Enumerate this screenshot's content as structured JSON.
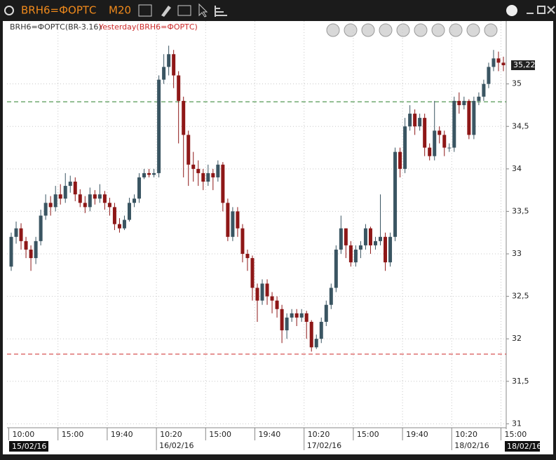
{
  "window": {
    "symbol": "BRH6=ФОРТС",
    "timeframe": "M20"
  },
  "chart_data": {
    "type": "candlestick",
    "series": [
      {
        "name": "BRH6=ФОРТС(BR-3.16)",
        "up_color": "#3a5562",
        "down_color": "#8e1717",
        "open": [
          32.85,
          33.2,
          33.3,
          33.15,
          33.05,
          32.95,
          33.15,
          33.45,
          33.6,
          33.55,
          33.7,
          33.65,
          33.8,
          33.85,
          33.7,
          33.6,
          33.55,
          33.7,
          33.65,
          33.7,
          33.6,
          33.55,
          33.35,
          33.3,
          33.4,
          33.6,
          33.65,
          33.9,
          33.95,
          33.93,
          33.95,
          35.05,
          35.2,
          35.35,
          35.1,
          34.8,
          34.4,
          34.05,
          34.0,
          33.95,
          33.85,
          33.95,
          33.9,
          34.05,
          33.6,
          33.2,
          33.5,
          33.3,
          33.0,
          32.95,
          32.6,
          32.45,
          32.65,
          32.5,
          32.45,
          32.35,
          32.1,
          32.25,
          32.3,
          32.25,
          32.3,
          32.2,
          31.9,
          32.0,
          32.2,
          32.4,
          32.6,
          33.05,
          33.3,
          33.1,
          32.9,
          33.05,
          33.1,
          33.3,
          33.1,
          33.15,
          33.2,
          32.9,
          33.2,
          34.2,
          34.0,
          34.5,
          34.65,
          34.5,
          34.6,
          34.25,
          34.15,
          34.45,
          34.4,
          34.25,
          34.25,
          34.8,
          34.75,
          34.8,
          34.4,
          34.8,
          34.85,
          35.0,
          35.2,
          35.3,
          35.25
        ],
        "high": [
          33.25,
          33.38,
          33.36,
          33.2,
          33.1,
          33.2,
          33.52,
          33.7,
          33.68,
          33.8,
          33.82,
          33.95,
          33.92,
          33.9,
          33.76,
          33.68,
          33.78,
          33.75,
          33.82,
          33.74,
          33.66,
          33.6,
          33.42,
          33.45,
          33.66,
          33.7,
          33.95,
          34.0,
          34.0,
          34.0,
          35.1,
          35.35,
          35.45,
          35.4,
          35.15,
          34.85,
          34.45,
          34.2,
          34.1,
          34.0,
          34.05,
          34.0,
          34.1,
          34.08,
          33.65,
          33.55,
          33.55,
          33.35,
          33.05,
          32.98,
          32.65,
          32.7,
          32.7,
          32.55,
          32.5,
          32.4,
          32.3,
          32.35,
          32.35,
          32.35,
          32.33,
          32.22,
          32.05,
          32.25,
          32.45,
          32.65,
          33.1,
          33.45,
          33.3,
          33.15,
          33.1,
          33.15,
          33.35,
          33.32,
          33.2,
          33.7,
          33.25,
          33.25,
          34.25,
          34.25,
          34.6,
          34.75,
          34.7,
          34.65,
          34.65,
          34.3,
          34.8,
          34.5,
          34.45,
          34.3,
          34.85,
          34.9,
          34.85,
          34.82,
          34.85,
          34.9,
          35.05,
          35.25,
          35.4,
          35.38,
          35.32
        ],
        "low": [
          32.8,
          33.12,
          33.05,
          32.95,
          32.8,
          32.88,
          33.1,
          33.4,
          33.45,
          33.5,
          33.58,
          33.6,
          33.72,
          33.62,
          33.55,
          33.48,
          33.5,
          33.58,
          33.6,
          33.52,
          33.45,
          33.28,
          33.25,
          33.28,
          33.38,
          33.55,
          33.6,
          33.88,
          33.9,
          33.9,
          33.9,
          35.0,
          35.1,
          34.95,
          34.3,
          33.9,
          33.8,
          33.85,
          33.8,
          33.75,
          33.8,
          33.75,
          33.85,
          33.5,
          33.15,
          33.15,
          33.2,
          32.9,
          32.8,
          32.45,
          32.2,
          32.4,
          32.4,
          32.3,
          32.25,
          31.95,
          32.0,
          32.2,
          32.15,
          32.2,
          32.0,
          31.85,
          31.88,
          31.95,
          32.15,
          32.35,
          32.55,
          33.0,
          32.95,
          32.85,
          32.85,
          32.95,
          33.05,
          33.0,
          33.05,
          33.1,
          32.8,
          32.85,
          33.15,
          33.9,
          33.95,
          34.45,
          34.4,
          34.45,
          34.15,
          34.1,
          34.1,
          34.3,
          34.15,
          34.2,
          34.2,
          34.65,
          34.7,
          34.35,
          34.35,
          34.75,
          34.8,
          34.95,
          35.15,
          35.15,
          35.15
        ],
        "close": [
          33.2,
          33.3,
          33.15,
          33.05,
          32.95,
          33.15,
          33.45,
          33.6,
          33.55,
          33.7,
          33.65,
          33.8,
          33.85,
          33.7,
          33.6,
          33.55,
          33.7,
          33.65,
          33.7,
          33.6,
          33.55,
          33.35,
          33.3,
          33.4,
          33.6,
          33.65,
          33.9,
          33.95,
          33.93,
          33.95,
          35.05,
          35.2,
          35.35,
          35.1,
          34.8,
          34.4,
          34.05,
          34.0,
          33.95,
          33.85,
          33.95,
          33.9,
          34.05,
          33.6,
          33.2,
          33.5,
          33.3,
          33.0,
          32.95,
          32.6,
          32.45,
          32.65,
          32.5,
          32.45,
          32.35,
          32.1,
          32.25,
          32.3,
          32.25,
          32.3,
          32.2,
          31.9,
          32.0,
          32.2,
          32.4,
          32.6,
          33.05,
          33.3,
          33.1,
          32.9,
          33.05,
          33.1,
          33.3,
          33.1,
          33.15,
          33.2,
          32.9,
          33.2,
          34.2,
          34.0,
          34.5,
          34.65,
          34.5,
          34.6,
          34.25,
          34.15,
          34.45,
          34.4,
          34.25,
          34.25,
          34.8,
          34.75,
          34.8,
          34.4,
          34.8,
          34.85,
          35.0,
          35.2,
          35.3,
          35.25,
          35.22
        ]
      }
    ],
    "categories": [
      "10:00",
      null,
      null,
      null,
      null,
      null,
      null,
      null,
      null,
      null,
      "15:00",
      null,
      null,
      null,
      null,
      null,
      null,
      null,
      null,
      null,
      "19:40",
      null,
      null,
      null,
      null,
      null,
      null,
      null,
      null,
      null,
      "10:20",
      null,
      null,
      null,
      null,
      null,
      null,
      null,
      null,
      null,
      "15:00",
      null,
      null,
      null,
      null,
      null,
      null,
      null,
      null,
      null,
      "19:40",
      null,
      null,
      null,
      null,
      null,
      null,
      null,
      null,
      null,
      "10:20",
      null,
      null,
      null,
      null,
      null,
      null,
      null,
      null,
      null,
      "15:00",
      null,
      null,
      null,
      null,
      null,
      null,
      null,
      null,
      null,
      "19:40",
      null,
      null,
      null,
      null,
      null,
      null,
      null,
      null,
      null,
      "10:20",
      null,
      null,
      null,
      null,
      null,
      null,
      null,
      null,
      null,
      "15:00"
    ],
    "dates": [
      "15/02/16",
      null,
      null,
      null,
      null,
      null,
      null,
      null,
      null,
      null,
      null,
      null,
      null,
      null,
      null,
      null,
      null,
      null,
      null,
      null,
      null,
      null,
      null,
      null,
      null,
      null,
      null,
      null,
      null,
      null,
      "16/02/16",
      null,
      null,
      null,
      null,
      null,
      null,
      null,
      null,
      null,
      null,
      null,
      null,
      null,
      null,
      null,
      null,
      null,
      null,
      null,
      null,
      null,
      null,
      null,
      null,
      null,
      null,
      null,
      null,
      null,
      "17/02/16",
      null,
      null,
      null,
      null,
      null,
      null,
      null,
      null,
      null,
      null,
      null,
      null,
      null,
      null,
      null,
      null,
      null,
      null,
      null,
      null,
      null,
      null,
      null,
      null,
      null,
      null,
      null,
      null,
      null,
      "18/02/16",
      null,
      null,
      null,
      null,
      null,
      null,
      null,
      null,
      null,
      null
    ],
    "current_date": "18/02/16",
    "ylim": [
      30.97,
      35.74
    ],
    "yticks": [
      31,
      {
        "value": 31.5,
        "label": "31,5"
      },
      32,
      {
        "value": 32.5,
        "label": "32,5"
      },
      33,
      {
        "value": 33.5,
        "label": "33,5"
      },
      34,
      {
        "value": 34.5,
        "label": "34,5"
      },
      35
    ],
    "last_price": {
      "value": 35.22,
      "label": "35,22"
    },
    "levels": [
      {
        "value": 34.79,
        "color": "#2a7f2a"
      },
      {
        "name": "Yesterday(BRH6=ФОРТС)",
        "value": 31.82,
        "color": "#cc2a2a"
      }
    ],
    "grid": true
  }
}
